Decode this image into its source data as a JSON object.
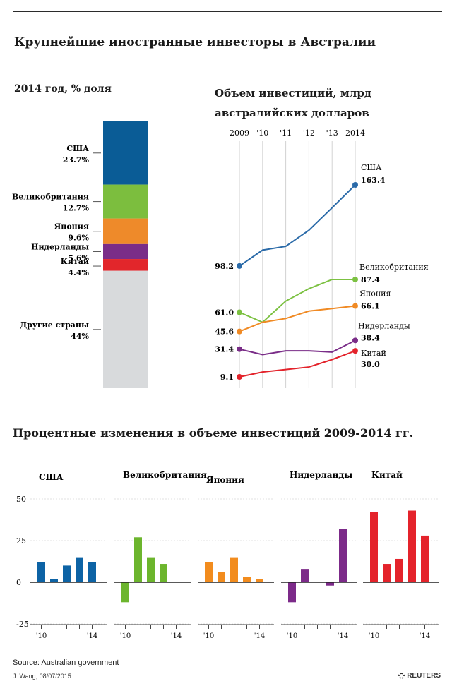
{
  "title": "Крупнейшие иностранные инвесторы в Австралии",
  "source": "Source: Australian government",
  "credit": "J. Wang, 08/07/2015",
  "brand": "REUTERS",
  "chart_data": [
    {
      "type": "bar",
      "stacked": true,
      "title": "2014 год, % доля",
      "categories": [
        "США",
        "Великобритания",
        "Япония",
        "Нидерланды",
        "Китай",
        "Другие страны"
      ],
      "values": [
        23.7,
        12.7,
        9.6,
        5.6,
        4.4,
        44
      ],
      "value_labels": [
        "23.7%",
        "12.7%",
        "9.6%",
        "5.6%",
        "4.4%",
        "44%"
      ],
      "colors": [
        "#0a5c96",
        "#7cbe3e",
        "#ee8a2a",
        "#7a2d88",
        "#e2262b",
        "#d8dadc"
      ]
    },
    {
      "type": "line",
      "title": "Объем инвестиций, млрд австралийских долларов",
      "x": [
        2009,
        2010,
        2011,
        2012,
        2013,
        2014
      ],
      "x_tick_labels": [
        "2009",
        "'10",
        "'11",
        "'12",
        "'13",
        "2014"
      ],
      "grid": true,
      "series": [
        {
          "name": "США",
          "color": "#2a6aa8",
          "values": [
            98.2,
            111,
            114,
            127,
            145,
            163.4
          ],
          "start_label": "98.2",
          "end_label": "163.4"
        },
        {
          "name": "Великобритания",
          "color": "#7cc142",
          "values": [
            61.0,
            53,
            70,
            80,
            87.4,
            87.4
          ],
          "start_label": "61.0",
          "end_label": "87.4"
        },
        {
          "name": "Япония",
          "color": "#f08a24",
          "values": [
            45.6,
            53,
            56,
            62,
            64,
            66.1
          ],
          "start_label": "45.6",
          "end_label": "66.1"
        },
        {
          "name": "Нидерланды",
          "color": "#7a2d88",
          "values": [
            31.4,
            27,
            30,
            30,
            29,
            38.4
          ],
          "start_label": "31.4",
          "end_label": "38.4"
        },
        {
          "name": "Китай",
          "color": "#e3232b",
          "values": [
            9.1,
            13,
            15,
            17,
            23,
            30.0
          ],
          "start_label": "9.1",
          "end_label": "30.0"
        }
      ]
    },
    {
      "type": "bar",
      "title": "Процентные изменения в объеме инвестиций 2009-2014 гг.",
      "ylim": [
        -25,
        50
      ],
      "y_ticks": [
        50,
        25,
        0,
        -25
      ],
      "x_tick_labels": [
        "'10",
        "'14"
      ],
      "panels": [
        {
          "name": "США",
          "color": "#0d63a5",
          "values": [
            12,
            2,
            10,
            15,
            12
          ]
        },
        {
          "name": "Великобритания",
          "color": "#6cb52d",
          "values": [
            -12,
            27,
            15,
            11,
            0
          ]
        },
        {
          "name": "Япония",
          "color": "#f28c1e",
          "values": [
            12,
            6,
            15,
            3,
            2
          ]
        },
        {
          "name": "Нидерланды",
          "color": "#7c2a89",
          "values": [
            -12,
            8,
            0,
            -2,
            32
          ]
        },
        {
          "name": "Китай",
          "color": "#e4232b",
          "values": [
            42,
            11,
            14,
            43,
            28
          ]
        }
      ]
    }
  ]
}
